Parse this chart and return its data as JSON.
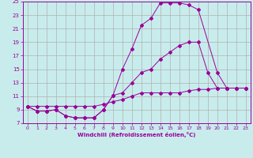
{
  "xlabel": "Windchill (Refroidissement éolien,°C)",
  "bg_color": "#c8ecec",
  "grid_color": "#b0b0b0",
  "line_color": "#990099",
  "xlim": [
    -0.5,
    23.5
  ],
  "ylim": [
    7,
    25
  ],
  "xticks": [
    0,
    1,
    2,
    3,
    4,
    5,
    6,
    7,
    8,
    9,
    10,
    11,
    12,
    13,
    14,
    15,
    16,
    17,
    18,
    19,
    20,
    21,
    22,
    23
  ],
  "yticks": [
    7,
    9,
    11,
    13,
    15,
    17,
    19,
    21,
    23,
    25
  ],
  "curve1_x": [
    0,
    1,
    2,
    3,
    4,
    5,
    6,
    7,
    8,
    9,
    10,
    11,
    12,
    13,
    14,
    15,
    16,
    17,
    18,
    20,
    21,
    22,
    23
  ],
  "curve1_y": [
    9.5,
    8.8,
    8.8,
    9.0,
    8.1,
    7.8,
    7.8,
    7.8,
    9.0,
    11.1,
    15.0,
    18.0,
    21.5,
    22.5,
    24.8,
    24.8,
    24.8,
    24.5,
    23.8,
    14.5,
    12.2,
    12.2,
    12.2
  ],
  "curve2_x": [
    0,
    1,
    2,
    3,
    4,
    5,
    6,
    7,
    8,
    9,
    10,
    11,
    12,
    13,
    14,
    15,
    16,
    17,
    18,
    19,
    20,
    21,
    22,
    23
  ],
  "curve2_y": [
    9.5,
    8.8,
    8.8,
    9.0,
    8.1,
    7.8,
    7.8,
    7.8,
    9.0,
    11.1,
    11.5,
    13.0,
    14.5,
    15.0,
    16.5,
    17.5,
    18.5,
    19.0,
    19.0,
    14.5,
    12.2,
    12.2,
    12.2,
    12.2
  ],
  "curve3_x": [
    0,
    1,
    2,
    3,
    4,
    5,
    6,
    7,
    8,
    9,
    10,
    11,
    12,
    13,
    14,
    15,
    16,
    17,
    18,
    19,
    20,
    21,
    22,
    23
  ],
  "curve3_y": [
    9.5,
    9.5,
    9.5,
    9.5,
    9.5,
    9.5,
    9.5,
    9.5,
    9.8,
    10.2,
    10.5,
    11.0,
    11.5,
    11.5,
    11.5,
    11.5,
    11.5,
    11.8,
    12.0,
    12.0,
    12.2,
    12.2,
    12.2,
    12.2
  ]
}
